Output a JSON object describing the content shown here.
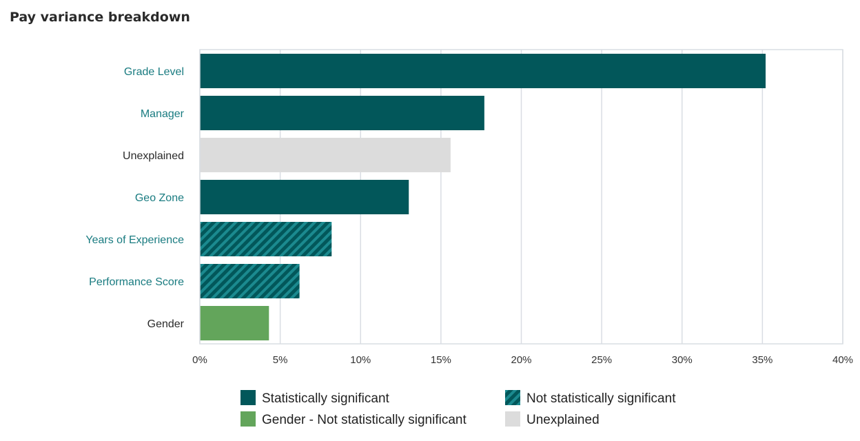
{
  "page": {
    "title": "Pay variance breakdown"
  },
  "colors": {
    "significant": "#02575a",
    "not_significant_stripe_bg": "#02575a",
    "not_significant_stripe_fg": "#1b8a8f",
    "gender": "#63a55b",
    "unexplained": "#dcdcdc",
    "label_teal": "#197b80",
    "label_dark": "#2a2a2a",
    "grid": "#d9dde3"
  },
  "chart_data": {
    "type": "bar",
    "orientation": "horizontal",
    "title": "Pay variance breakdown",
    "categories": [
      "Grade Level",
      "Manager",
      "Unexplained",
      "Geo Zone",
      "Years of Experience",
      "Performance Score",
      "Gender"
    ],
    "values": [
      35.2,
      17.7,
      15.6,
      13.0,
      8.2,
      6.2,
      4.3
    ],
    "bar_types": [
      "significant",
      "significant",
      "unexplained",
      "significant",
      "not_significant",
      "not_significant",
      "gender"
    ],
    "label_colors": [
      "teal",
      "teal",
      "dark",
      "teal",
      "teal",
      "teal",
      "dark"
    ],
    "xlim": [
      0,
      40
    ],
    "x_ticks": [
      0,
      5,
      10,
      15,
      20,
      25,
      30,
      35,
      40
    ],
    "x_tick_labels": [
      "0%",
      "5%",
      "10%",
      "15%",
      "20%",
      "25%",
      "30%",
      "35%",
      "40%"
    ],
    "grid": "vertical",
    "legend_position": "bottom",
    "legend": [
      {
        "label": "Statistically significant",
        "type": "significant"
      },
      {
        "label": "Not statistically significant",
        "type": "not_significant"
      },
      {
        "label": "Gender - Not statistically significant",
        "type": "gender"
      },
      {
        "label": "Unexplained",
        "type": "unexplained"
      }
    ]
  }
}
